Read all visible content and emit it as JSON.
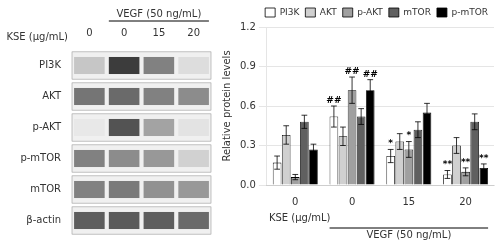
{
  "chart_data": [
    {
      "type": "heatmap",
      "categories": [
        "0",
        "0",
        "15",
        "20"
      ],
      "rows": [
        "PI3K",
        "AKT",
        "p-AKT",
        "p-mTOR",
        "mTOR",
        "β-actin"
      ],
      "cells": [
        [
          0.25,
          0.85,
          0.55,
          0.15
        ],
        [
          0.6,
          0.65,
          0.55,
          0.5
        ],
        [
          0.1,
          0.75,
          0.4,
          0.12
        ],
        [
          0.55,
          0.5,
          0.45,
          0.2
        ],
        [
          0.55,
          0.58,
          0.48,
          0.45
        ],
        [
          0.7,
          0.72,
          0.7,
          0.65
        ]
      ],
      "xlabel": "KSE (μg/mL)",
      "annotations": [
        {
          "text": "VEGF (50 ng/mL)",
          "categories": [
            1,
            3
          ]
        }
      ]
    },
    {
      "type": "bar",
      "categories": [
        "0",
        "0",
        "15",
        "20"
      ],
      "series": [
        {
          "name": "PI3K",
          "color": "#ffffff",
          "values": [
            0.17,
            0.52,
            0.22,
            0.08
          ],
          "errors": [
            0.05,
            0.08,
            0.05,
            0.03
          ]
        },
        {
          "name": "AKT",
          "color": "#d0d0d0",
          "values": [
            0.38,
            0.37,
            0.33,
            0.3
          ],
          "errors": [
            0.07,
            0.07,
            0.06,
            0.06
          ]
        },
        {
          "name": "p-AKT",
          "color": "#a0a0a0",
          "values": [
            0.06,
            0.72,
            0.27,
            0.1
          ],
          "errors": [
            0.02,
            0.1,
            0.06,
            0.03
          ]
        },
        {
          "name": "mTOR",
          "color": "#606060",
          "values": [
            0.48,
            0.52,
            0.42,
            0.48
          ],
          "errors": [
            0.05,
            0.06,
            0.06,
            0.06
          ]
        },
        {
          "name": "p-mTOR",
          "color": "#000000",
          "values": [
            0.27,
            0.72,
            0.55,
            0.13
          ],
          "errors": [
            0.04,
            0.08,
            0.07,
            0.03
          ]
        }
      ],
      "ylabel": "Relative protein levels",
      "xlabel": "KSE (μg/mL)",
      "ylim": [
        0,
        1.2
      ],
      "yticks": [
        {
          "value": 0,
          "label": "0.0"
        },
        0.3,
        0.6,
        0.9,
        1.2
      ],
      "grid": true,
      "legend": "upper right",
      "annotations": [
        {
          "text": "##",
          "series": "PI3K",
          "category": 1
        },
        {
          "text": "##",
          "series": "p-AKT",
          "category": 1
        },
        {
          "text": "##",
          "series": "p-mTOR",
          "category": 1
        },
        {
          "text": "*",
          "series": "PI3K",
          "category": 2
        },
        {
          "text": "*",
          "series": "p-AKT",
          "category": 2
        },
        {
          "text": "**",
          "series": "PI3K",
          "category": 3
        },
        {
          "text": "**",
          "series": "p-AKT",
          "category": 3
        },
        {
          "text": "**",
          "series": "p-mTOR",
          "category": 3
        },
        {
          "text": "VEGF (50 ng/mL)",
          "categories": [
            1,
            3
          ]
        }
      ]
    }
  ]
}
